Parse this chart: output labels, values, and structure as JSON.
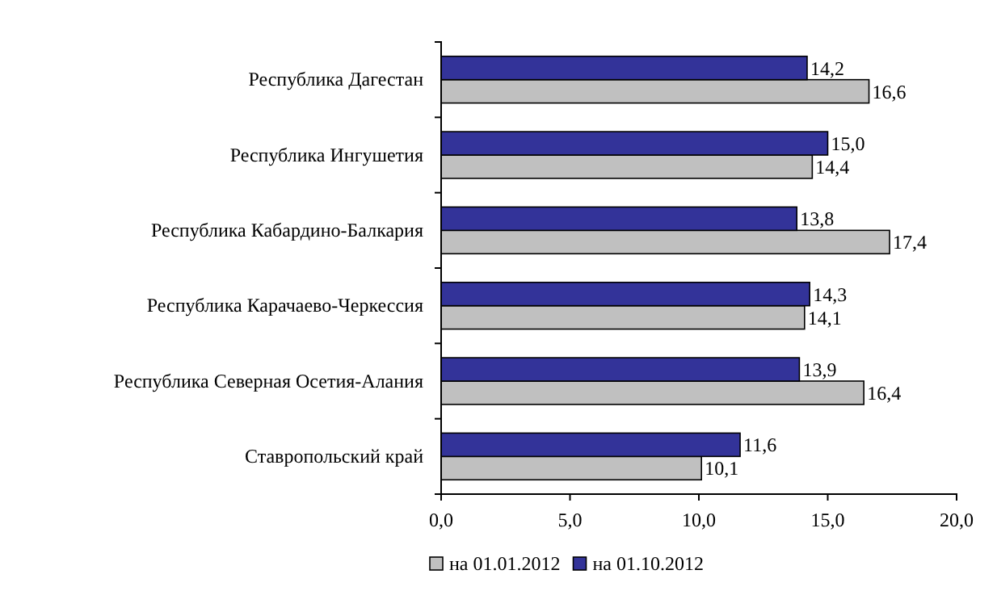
{
  "chart_data": {
    "type": "bar",
    "orientation": "horizontal",
    "categories": [
      "Республика Дагестан",
      "Республика Ингушетия",
      "Республика Кабардино-Балкария",
      "Республика Карачаево-Черкессия",
      "Республика Северная Осетия-Алания",
      "Ставропольский край"
    ],
    "series": [
      {
        "name": "на 01.01.2012",
        "color": "#c0c0c0",
        "values": [
          16.6,
          14.4,
          17.4,
          14.1,
          16.4,
          10.1
        ],
        "value_labels": [
          "16,6",
          "14,4",
          "17,4",
          "14,1",
          "16,4",
          "10,1"
        ]
      },
      {
        "name": "на 01.10.2012",
        "color": "#333399",
        "values": [
          14.2,
          15.0,
          13.8,
          14.3,
          13.9,
          11.6
        ],
        "value_labels": [
          "14,2",
          "15,0",
          "13,8",
          "14,3",
          "13,9",
          "11,6"
        ]
      }
    ],
    "xlim": [
      0,
      20
    ],
    "xticks": [
      {
        "value": 0,
        "label": "0,0"
      },
      {
        "value": 5,
        "label": "5,0"
      },
      {
        "value": 10,
        "label": "10,0"
      },
      {
        "value": 15,
        "label": "15,0"
      },
      {
        "value": 20,
        "label": "20,0"
      }
    ],
    "legend": "bottom"
  }
}
